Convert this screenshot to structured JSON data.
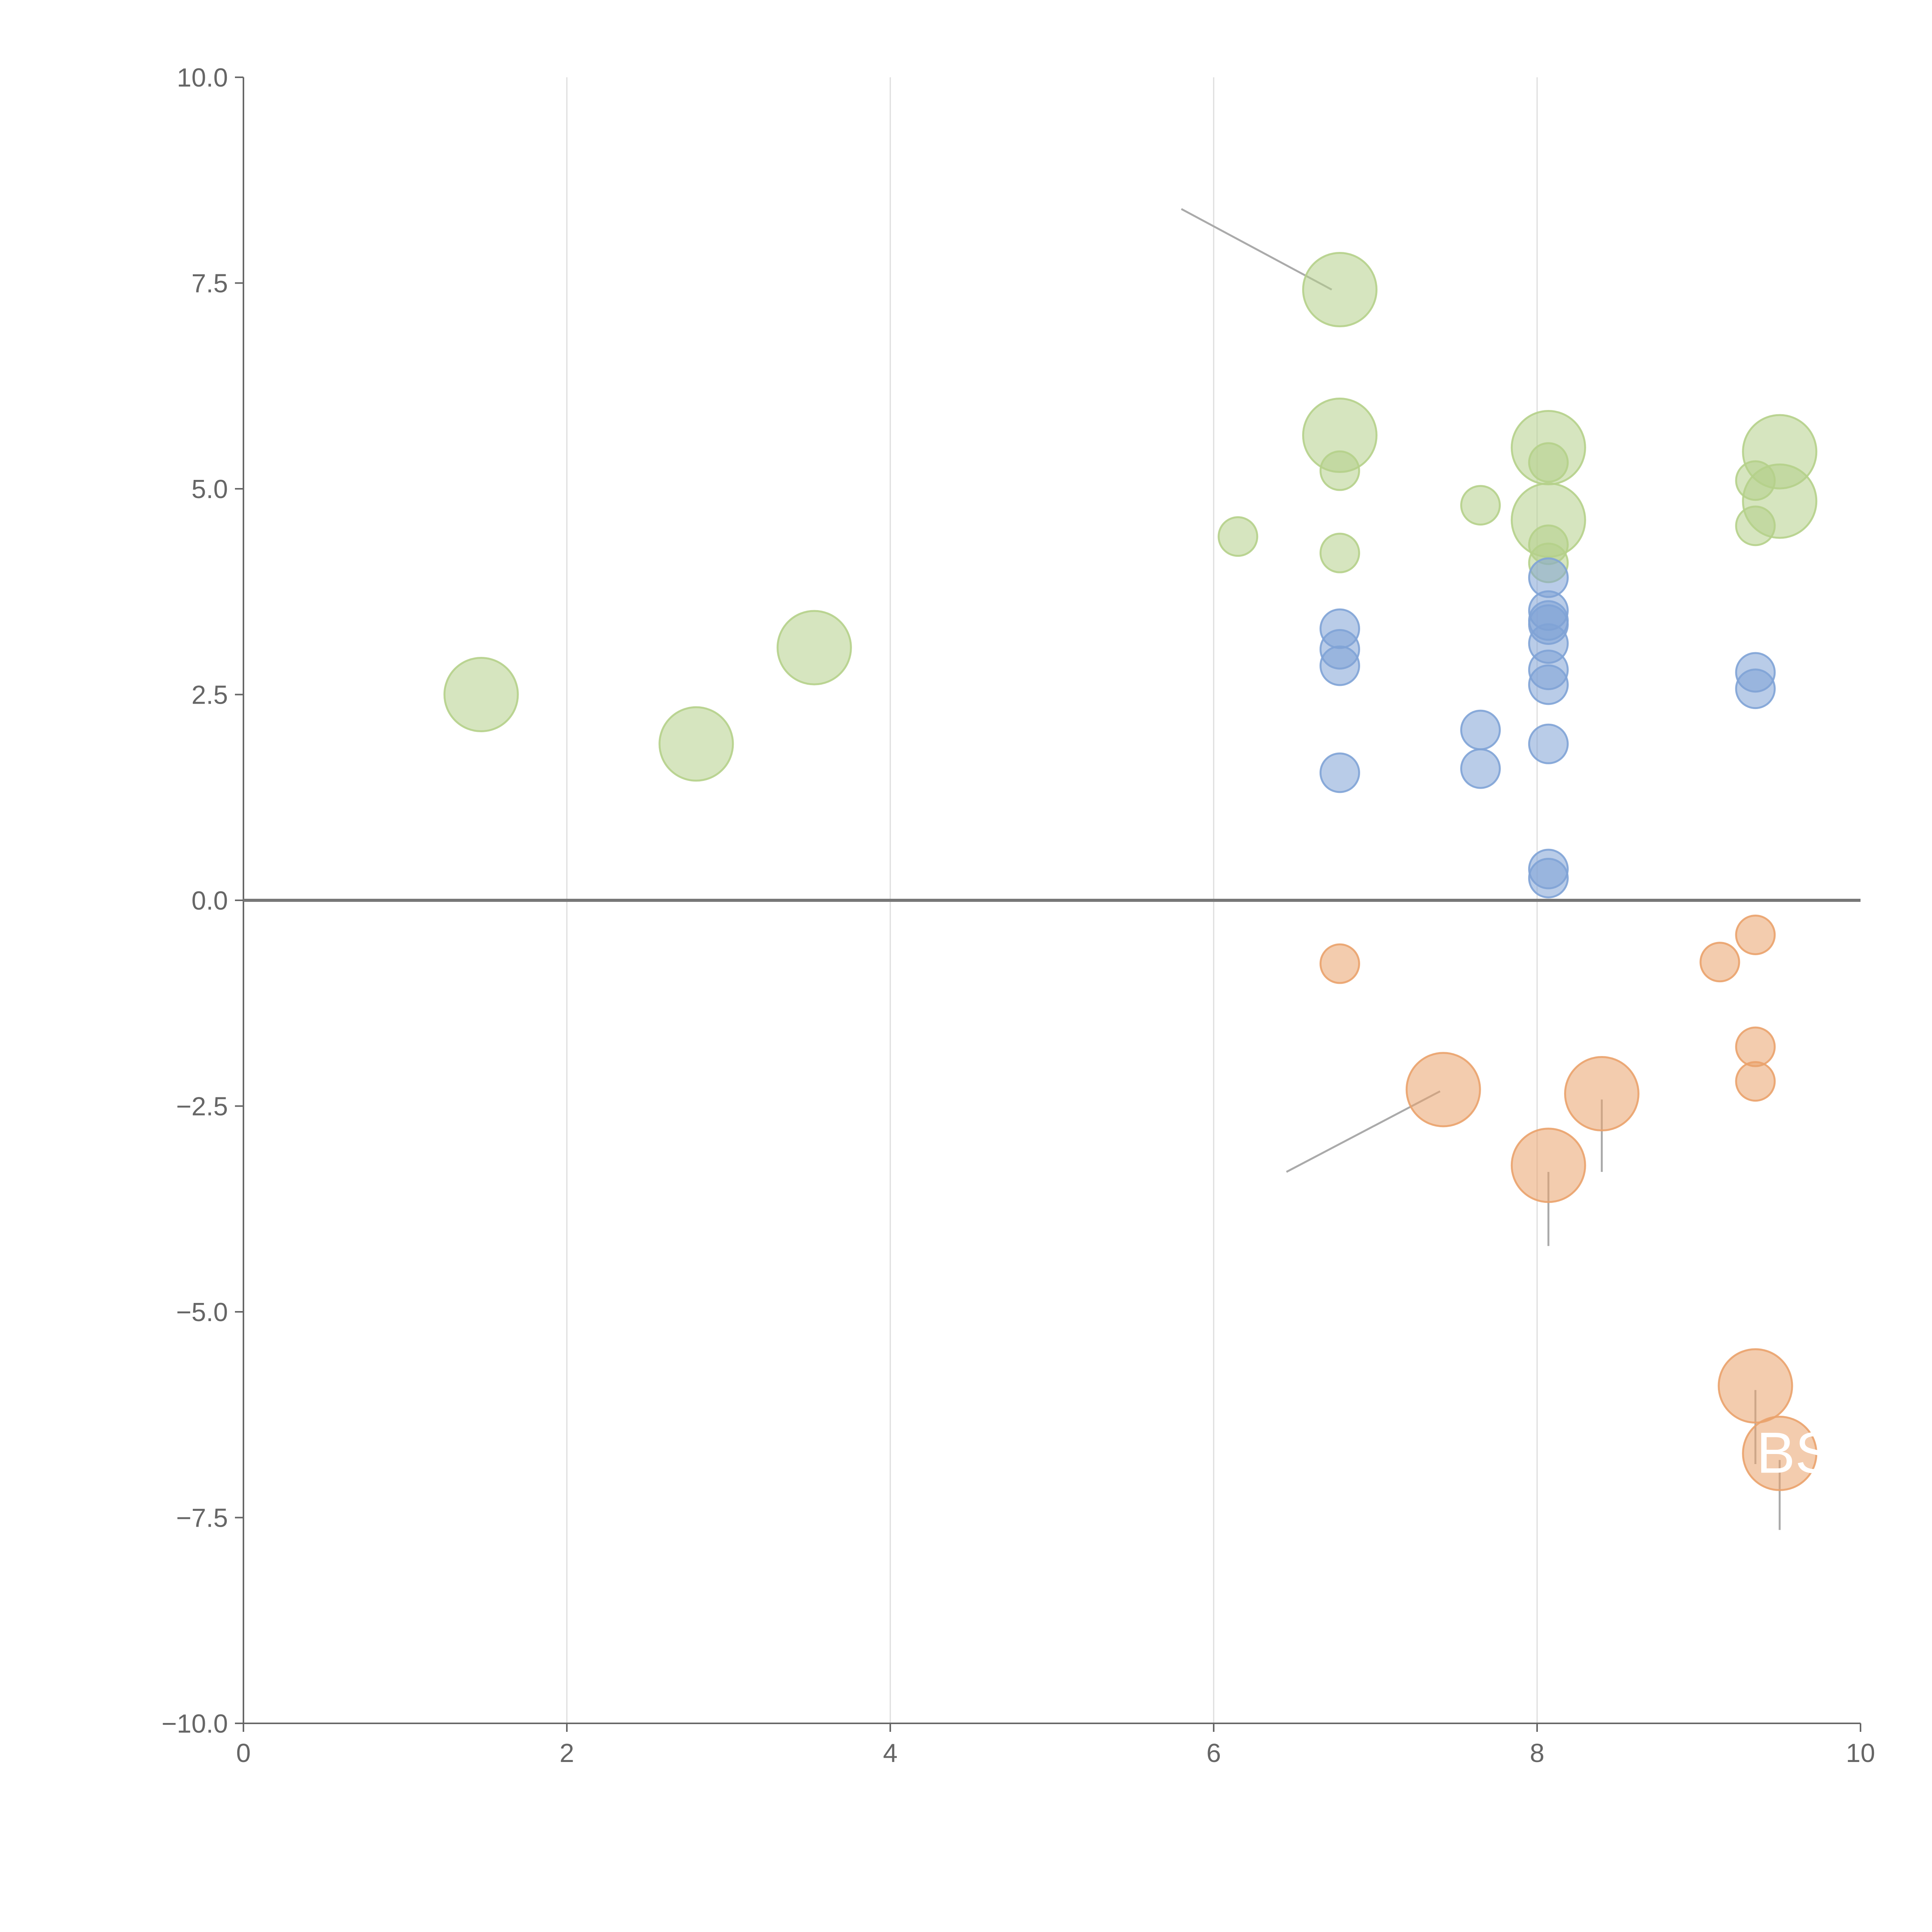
{
  "chart_data": {
    "type": "scatter",
    "subtype": "bubble",
    "title": "",
    "xlabel": "",
    "ylabel": "",
    "xlim": [
      0,
      10
    ],
    "ylim": [
      -10,
      10
    ],
    "x_ticks": [
      "0",
      "2",
      "4",
      "6",
      "8",
      "10"
    ],
    "y_ticks": [
      "10.0",
      "7.5",
      "5.0",
      "2.5",
      "0.0",
      "−2.5",
      "−5.0",
      "−7.5",
      "−10.0"
    ],
    "grid": "vertical",
    "legend": "none",
    "colors": {
      "green": "#b5d08a",
      "blue": "#7fa3d6",
      "orange": "#eaa26c",
      "leader_line": "#aaaaaa",
      "axis": "#666666"
    },
    "series": [
      {
        "name": "green",
        "color": "#b5d08a",
        "points": [
          {
            "x": 1.47,
            "y": 2.5,
            "size": 3
          },
          {
            "x": 2.8,
            "y": 1.9,
            "size": 3
          },
          {
            "x": 3.53,
            "y": 3.07,
            "size": 3
          },
          {
            "x": 6.15,
            "y": 4.42,
            "size": 1
          },
          {
            "x": 6.78,
            "y": 7.42,
            "size": 3
          },
          {
            "x": 6.78,
            "y": 5.65,
            "size": 3
          },
          {
            "x": 6.78,
            "y": 5.22,
            "size": 1
          },
          {
            "x": 6.78,
            "y": 4.22,
            "size": 1
          },
          {
            "x": 7.65,
            "y": 4.8,
            "size": 1
          },
          {
            "x": 8.07,
            "y": 5.5,
            "size": 3
          },
          {
            "x": 8.07,
            "y": 5.32,
            "size": 1
          },
          {
            "x": 8.07,
            "y": 4.62,
            "size": 3
          },
          {
            "x": 8.07,
            "y": 4.32,
            "size": 1
          },
          {
            "x": 8.07,
            "y": 4.1,
            "size": 1
          },
          {
            "x": 9.35,
            "y": 5.1,
            "size": 1
          },
          {
            "x": 9.35,
            "y": 4.55,
            "size": 1
          },
          {
            "x": 9.5,
            "y": 5.45,
            "size": 3
          },
          {
            "x": 9.5,
            "y": 4.85,
            "size": 3
          }
        ]
      },
      {
        "name": "blue",
        "color": "#7fa3d6",
        "points": [
          {
            "x": 6.78,
            "y": 3.3,
            "size": 1
          },
          {
            "x": 6.78,
            "y": 3.05,
            "size": 1
          },
          {
            "x": 6.78,
            "y": 2.85,
            "size": 1
          },
          {
            "x": 6.78,
            "y": 1.55,
            "size": 1
          },
          {
            "x": 7.65,
            "y": 2.07,
            "size": 1
          },
          {
            "x": 7.65,
            "y": 1.6,
            "size": 1
          },
          {
            "x": 8.07,
            "y": 3.92,
            "size": 1
          },
          {
            "x": 8.07,
            "y": 3.52,
            "size": 1
          },
          {
            "x": 8.07,
            "y": 3.4,
            "size": 1
          },
          {
            "x": 8.07,
            "y": 3.35,
            "size": 1
          },
          {
            "x": 8.07,
            "y": 3.12,
            "size": 1
          },
          {
            "x": 8.07,
            "y": 2.8,
            "size": 1
          },
          {
            "x": 8.07,
            "y": 2.62,
            "size": 1
          },
          {
            "x": 8.07,
            "y": 1.9,
            "size": 1
          },
          {
            "x": 8.07,
            "y": 0.38,
            "size": 1
          },
          {
            "x": 8.07,
            "y": 0.27,
            "size": 1
          },
          {
            "x": 9.35,
            "y": 2.77,
            "size": 1
          },
          {
            "x": 9.35,
            "y": 2.57,
            "size": 1
          }
        ]
      },
      {
        "name": "orange",
        "color": "#eaa26c",
        "points": [
          {
            "x": 6.78,
            "y": -0.77,
            "size": 1
          },
          {
            "x": 7.42,
            "y": -2.3,
            "size": 3
          },
          {
            "x": 8.07,
            "y": -3.22,
            "size": 3
          },
          {
            "x": 8.4,
            "y": -2.35,
            "size": 3
          },
          {
            "x": 9.13,
            "y": -0.75,
            "size": 1
          },
          {
            "x": 9.35,
            "y": -0.42,
            "size": 1
          },
          {
            "x": 9.35,
            "y": -1.78,
            "size": 1
          },
          {
            "x": 9.35,
            "y": -2.2,
            "size": 1
          },
          {
            "x": 9.35,
            "y": -5.9,
            "size": 3
          },
          {
            "x": 9.5,
            "y": -6.72,
            "size": 3
          }
        ]
      }
    ],
    "leader_lines": [
      {
        "x1": 6.73,
        "y1": 7.42,
        "x2": 5.8,
        "y2": 8.4,
        "color": "#aaaaaa"
      },
      {
        "x1": 7.4,
        "y1": -2.32,
        "x2": 6.45,
        "y2": -3.3,
        "color": "#aaaaaa"
      },
      {
        "x1": 8.07,
        "y1": -3.3,
        "x2": 8.07,
        "y2": -4.2,
        "color": "#aaaaaa"
      },
      {
        "x1": 8.4,
        "y1": -2.42,
        "x2": 8.4,
        "y2": -3.3,
        "color": "#aaaaaa"
      },
      {
        "x1": 9.35,
        "y1": -5.95,
        "x2": 9.35,
        "y2": -6.85,
        "color": "#aaaaaa"
      },
      {
        "x1": 9.5,
        "y1": -6.8,
        "x2": 9.5,
        "y2": -7.65,
        "color": "#aaaaaa"
      },
      {
        "x1": 2.82,
        "y1": 1.9,
        "x2": 3.02,
        "y2": 1.95,
        "color": "#ffffff"
      },
      {
        "x1": 8.07,
        "y1": 5.5,
        "x2": 8.1,
        "y2": 5.85,
        "color": "#ffffff"
      },
      {
        "x1": 8.07,
        "y1": 4.6,
        "x2": 8.12,
        "y2": 4.45,
        "color": "#ffffff"
      },
      {
        "x1": 9.45,
        "y1": 5.45,
        "x2": 9.3,
        "y2": 5.55,
        "color": "#ffffff"
      },
      {
        "x1": 9.45,
        "y1": 4.8,
        "x2": 9.25,
        "y2": 4.6,
        "color": "#ffffff"
      }
    ],
    "annotations": [
      {
        "text": "BS",
        "x": 9.5,
        "y": -6.72
      }
    ]
  }
}
